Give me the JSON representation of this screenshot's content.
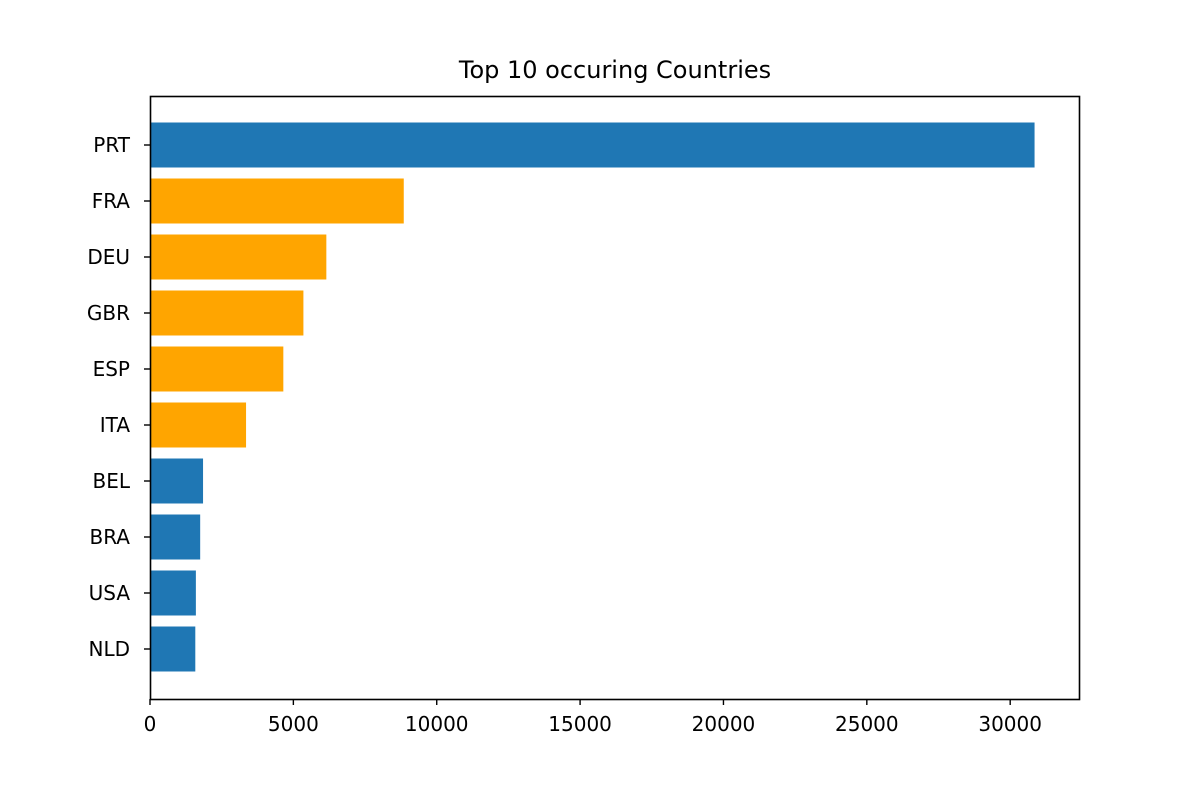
{
  "chart_data": {
    "type": "bar",
    "orientation": "horizontal",
    "title": "Top 10 occuring Countries",
    "xlabel": "",
    "ylabel": "",
    "categories": [
      "PRT",
      "FRA",
      "DEU",
      "GBR",
      "ESP",
      "ITA",
      "BEL",
      "BRA",
      "USA",
      "NLD"
    ],
    "values": [
      30850,
      8850,
      6150,
      5350,
      4650,
      3350,
      1850,
      1750,
      1600,
      1580
    ],
    "bar_colors": [
      "#1f77b4",
      "#ffa500",
      "#ffa500",
      "#ffa500",
      "#ffa500",
      "#ffa500",
      "#1f77b4",
      "#1f77b4",
      "#1f77b4",
      "#1f77b4"
    ],
    "xlim": [
      0,
      32400
    ],
    "xticks": [
      0,
      5000,
      10000,
      15000,
      20000,
      25000,
      30000
    ],
    "grid": false,
    "legend": "none"
  }
}
